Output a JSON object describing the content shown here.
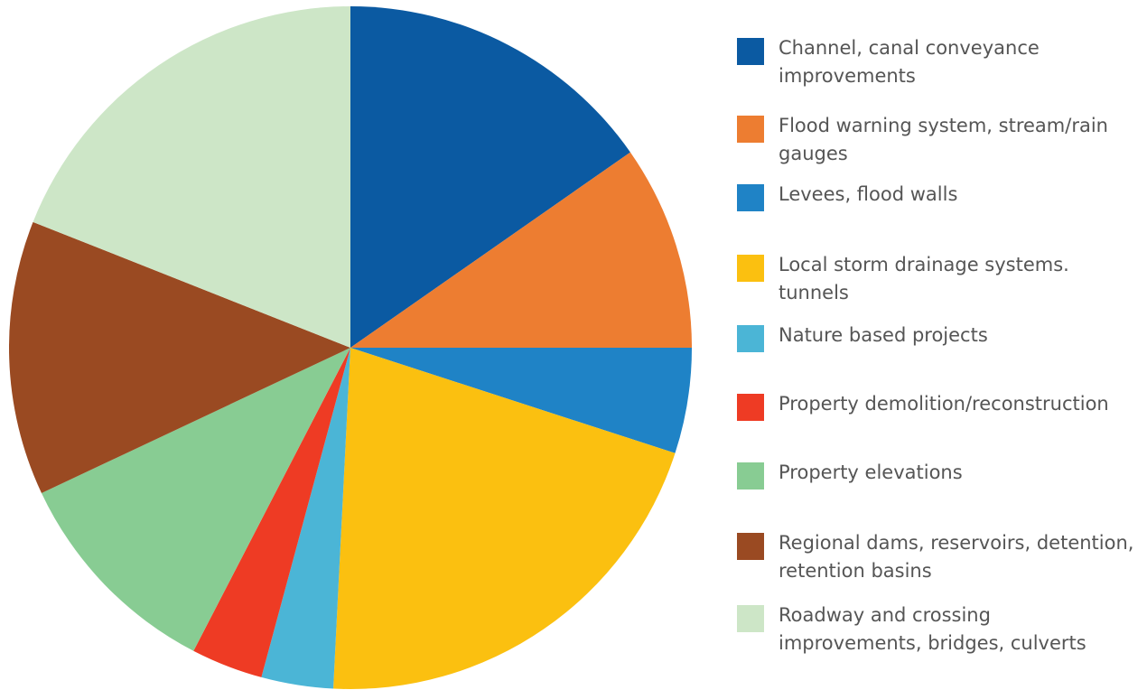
{
  "chart_data": {
    "type": "pie",
    "start_angle": "12 o'clock",
    "direction": "clockwise",
    "title": "",
    "legend_position": "right",
    "slices": [
      {
        "label": "Channel, canal conveyance improvements",
        "value": 15.3,
        "color": "#0b5aa2"
      },
      {
        "label": "Flood warning system, stream/rain gauges",
        "value": 9.7,
        "color": "#ed7d31"
      },
      {
        "label": "Levees, flood walls",
        "value": 5.0,
        "color": "#1f83c6"
      },
      {
        "label": "Local storm drainage systems. tunnels",
        "value": 20.8,
        "color": "#fbc010"
      },
      {
        "label": "Nature based projects",
        "value": 3.4,
        "color": "#4bb5d6"
      },
      {
        "label": "Property demolition/reconstruction",
        "value": 3.4,
        "color": "#ee3b24"
      },
      {
        "label": "Property elevations",
        "value": 10.4,
        "color": "#88cc93"
      },
      {
        "label": "Regional dams, reservoirs, detention, retention basins",
        "value": 13.0,
        "color": "#9a4a22"
      },
      {
        "label": "Roadway and crossing improvements, bridges, culverts",
        "value": 19.0,
        "color": "#cde6c7"
      }
    ]
  }
}
